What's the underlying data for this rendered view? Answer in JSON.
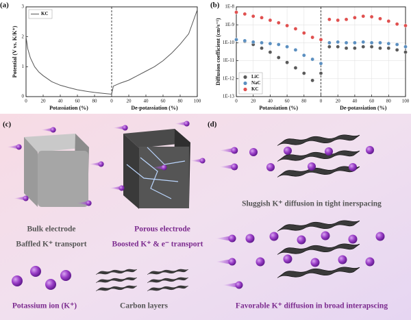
{
  "chart_data": [
    {
      "type": "line",
      "panel_label": "(a)",
      "ylabel": "Potential (V vs. K/K⁺)",
      "xlabels": [
        "Potassiation (%)",
        "De-potassiation (%)"
      ],
      "x": [
        0,
        2,
        5,
        10,
        15,
        20,
        30,
        40,
        50,
        60,
        70,
        80,
        90,
        100,
        102,
        110,
        120,
        130,
        140,
        150,
        160,
        170,
        180,
        190,
        200
      ],
      "series": [
        {
          "name": "KC",
          "color": "#555555",
          "values": [
            2.0,
            1.6,
            1.3,
            1.0,
            0.82,
            0.7,
            0.5,
            0.38,
            0.3,
            0.23,
            0.18,
            0.14,
            0.11,
            0.08,
            0.35,
            0.45,
            0.55,
            0.7,
            0.85,
            1.0,
            1.2,
            1.45,
            1.75,
            2.1,
            2.9
          ]
        }
      ],
      "xlim": [
        0,
        200
      ],
      "xticks": [
        0,
        20,
        40,
        60,
        80,
        {
          "value": 100,
          "label": "0"
        },
        {
          "value": 120,
          "label": "20"
        },
        {
          "value": 140,
          "label": "40"
        },
        {
          "value": 160,
          "label": "60"
        },
        {
          "value": 180,
          "label": "80"
        },
        {
          "value": 200,
          "label": "100"
        }
      ],
      "ylim": [
        0,
        3
      ],
      "yticks": [
        0,
        1,
        2,
        3
      ],
      "vline": 100,
      "legend": "upper left",
      "grid": false,
      "log_y": false
    },
    {
      "type": "scatter",
      "panel_label": "(b)",
      "ylabel": "Diffusion coefficient (cm²s⁻¹)",
      "xlabels": [
        "Potassiation (%)",
        "De-potassiation (%)"
      ],
      "x": [
        0,
        10,
        20,
        30,
        40,
        50,
        60,
        70,
        80,
        90,
        100,
        110,
        120,
        130,
        140,
        150,
        160,
        170,
        180,
        190,
        200
      ],
      "series": [
        {
          "name": "LiC",
          "color": "#5a5a5a",
          "values": [
            1.5e-10,
            1.2e-10,
            8e-11,
            5e-11,
            3e-11,
            1.5e-11,
            8e-12,
            4e-12,
            2e-12,
            8e-13,
            2e-12,
            6e-11,
            6e-11,
            5e-11,
            5e-11,
            6e-11,
            6e-11,
            5e-11,
            5e-11,
            4e-11,
            3e-11
          ]
        },
        {
          "name": "NaC",
          "color": "#5b8fc0",
          "values": [
            1.5e-10,
            1.3e-10,
            1.1e-10,
            1e-10,
            9e-11,
            8e-11,
            6e-11,
            4e-11,
            2e-11,
            1.2e-11,
            7e-12,
            1e-10,
            1.1e-10,
            1e-10,
            1e-10,
            1.1e-10,
            1e-10,
            1e-10,
            9e-11,
            8e-11,
            6e-11
          ]
        },
        {
          "name": "KC",
          "color": "#e0504f",
          "values": [
            5e-09,
            4e-09,
            3e-09,
            2.5e-09,
            1.8e-09,
            1.3e-09,
            9e-10,
            6e-10,
            3.5e-10,
            2e-10,
            1.5e-10,
            2e-09,
            1.8e-09,
            2e-09,
            2.5e-09,
            3e-09,
            2.8e-09,
            2.2e-09,
            1.6e-09,
            1.1e-09,
            9e-10
          ]
        }
      ],
      "xlim": [
        0,
        200
      ],
      "xticks": [
        0,
        20,
        40,
        60,
        80,
        {
          "value": 100,
          "label": "0"
        },
        {
          "value": 120,
          "label": "20"
        },
        {
          "value": 140,
          "label": "40"
        },
        {
          "value": 160,
          "label": "60"
        },
        {
          "value": 180,
          "label": "80"
        },
        {
          "value": 200,
          "label": "100"
        }
      ],
      "ylim": [
        1e-13,
        1e-08
      ],
      "yticks": [
        {
          "value": 1e-13,
          "label": "1E-13"
        },
        {
          "value": 1e-12,
          "label": "1E-12"
        },
        {
          "value": 1e-11,
          "label": "1E-11"
        },
        {
          "value": 1e-10,
          "label": "1E-10"
        },
        {
          "value": 1e-09,
          "label": "1E-9"
        },
        {
          "value": 1e-08,
          "label": "1E-8"
        }
      ],
      "vline": 100,
      "legend": "lower left",
      "grid": true,
      "log_y": true
    }
  ],
  "panels": {
    "c": {
      "label": "(c)",
      "bulk": "Bulk electrode",
      "bulk_note": "Baffled K⁺ transport",
      "porous": "Porous electrode",
      "porous_note": "Boosted K⁺ & e⁻ transport",
      "ion": "Potassium ion (K⁺)",
      "layers": "Carbon layers"
    },
    "d": {
      "label": "(d)",
      "tight": "Sluggish K⁺ diffusion in tight inerspacing",
      "broad": "Favorable K⁺ diffusion in broad interapscing"
    }
  }
}
